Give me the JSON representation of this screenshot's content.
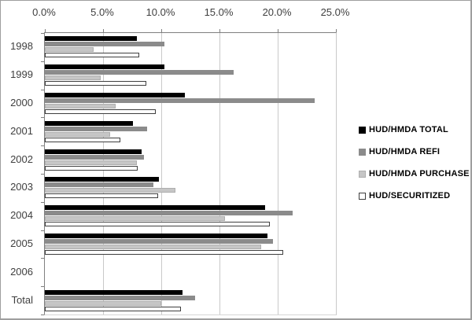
{
  "chart_data": {
    "type": "bar",
    "orientation": "horizontal",
    "title": "",
    "xlabel": "",
    "ylabel": "",
    "xlim": [
      0,
      25
    ],
    "grid": true,
    "legend_position": "right",
    "x_tick_labels": [
      "0.0%",
      "5.0%",
      "10.0%",
      "15.0%",
      "20.0%",
      "25.0%"
    ],
    "x_tick_values": [
      0,
      5,
      10,
      15,
      20,
      25
    ],
    "categories": [
      "1998",
      "1999",
      "2000",
      "2001",
      "2002",
      "2003",
      "2004",
      "2005",
      "2006",
      "Total"
    ],
    "series": [
      {
        "name": "HUD/HMDA TOTAL",
        "color": "#000000",
        "border": "#000000",
        "values": [
          7.9,
          10.3,
          12.0,
          7.6,
          8.3,
          9.8,
          18.9,
          19.1,
          null,
          11.8
        ]
      },
      {
        "name": "HUD/HMDA REFI",
        "color": "#8b8b8b",
        "border": "#8b8b8b",
        "values": [
          10.3,
          16.2,
          23.2,
          8.8,
          8.5,
          9.3,
          21.3,
          19.6,
          null,
          12.9
        ]
      },
      {
        "name": "HUD/HMDA PURCHASE",
        "color": "#c6c6c6",
        "border": "#aeaeae",
        "values": [
          4.2,
          4.8,
          6.1,
          5.6,
          7.9,
          11.2,
          15.5,
          18.6,
          null,
          10.0
        ]
      },
      {
        "name": "HUD/SECURITIZED",
        "color": "#ffffff",
        "border": "#3f3f3f",
        "values": [
          8.1,
          8.7,
          9.5,
          6.5,
          8.0,
          9.7,
          19.3,
          20.5,
          null,
          11.7
        ]
      }
    ],
    "colors": {
      "axis_line": "#808080",
      "gridline": "#c9c9c9",
      "tick_label": "#3f3f3f",
      "frame_border": "#9e9e9e"
    }
  }
}
